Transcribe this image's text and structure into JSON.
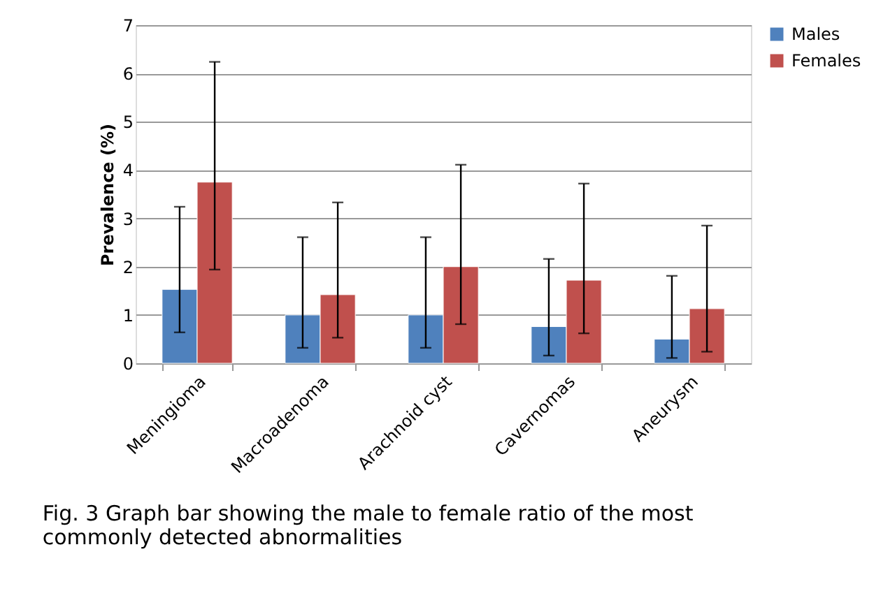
{
  "chart_data": {
    "type": "bar",
    "ylabel": "Prevalence (%)",
    "categories": [
      "Meningioma",
      "Macroadenoma",
      "Arachnoid cyst",
      "Cavernomas",
      "Aneurysm"
    ],
    "series": [
      {
        "name": "Males",
        "color": "#4f81bd",
        "values": [
          1.53,
          1.0,
          1.0,
          0.76,
          0.5
        ],
        "errors": [
          [
            0.64,
            3.24
          ],
          [
            0.32,
            2.61
          ],
          [
            0.32,
            2.61
          ],
          [
            0.16,
            2.16
          ],
          [
            0.11,
            1.81
          ]
        ]
      },
      {
        "name": "Females",
        "color": "#c0504d",
        "values": [
          3.75,
          1.42,
          2.0,
          1.72,
          1.13
        ],
        "errors": [
          [
            1.94,
            6.24
          ],
          [
            0.53,
            3.33
          ],
          [
            0.81,
            4.11
          ],
          [
            0.62,
            3.72
          ],
          [
            0.24,
            2.85
          ]
        ]
      }
    ],
    "ylim": [
      0,
      7
    ],
    "yticks": [
      0,
      1,
      2,
      3,
      4,
      5,
      6,
      7
    ],
    "grid": "y",
    "legend": "right",
    "annotations": [
      "Fig. 3 Graph bar showing the male to female ratio of the most commonly detected abnormalities"
    ]
  }
}
